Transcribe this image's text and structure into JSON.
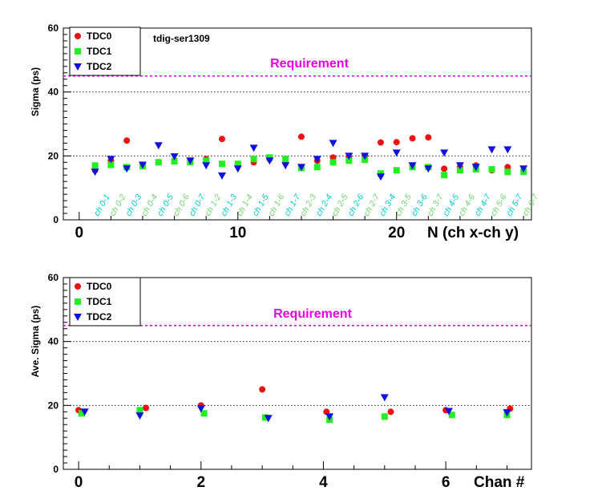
{
  "chart_data": [
    {
      "type": "scatter",
      "annotation": "tdig-ser1309",
      "ylabel": "Sigma (ps)",
      "xlabel": "N (ch x-ch y)",
      "ylim": [
        0,
        60
      ],
      "xlim": [
        -1,
        28.5
      ],
      "y_ticks": [
        0,
        20,
        40,
        60
      ],
      "x_ticks": [
        0,
        10,
        20
      ],
      "grid": true,
      "legend_position": "top-left",
      "requirement": {
        "label": "Requirement",
        "value": 45,
        "color": "#e600e6"
      },
      "category_labels": [
        "ch 0-1",
        "ch 0-2",
        "ch 0-3",
        "ch 0-4",
        "ch 0-5",
        "ch 0-6",
        "ch 0-7",
        "ch 1-2",
        "ch 1-3",
        "ch 1-4",
        "ch 1-5",
        "ch 1-6",
        "ch 1-7",
        "ch 2-3",
        "ch 2-4",
        "ch 2-5",
        "ch 2-6",
        "ch 2-7",
        "ch 3-4",
        "ch 3-5",
        "ch 3-6",
        "ch 3-7",
        "ch 4-5",
        "ch 4-6",
        "ch 4-7",
        "ch 5-6",
        "ch 5-7",
        "ch 6-7"
      ],
      "category_label_colors": [
        "#00c8c8",
        "#6fd36f"
      ],
      "series": [
        {
          "name": "TDC0",
          "marker": "circle",
          "color": "#ee1111",
          "x": [
            1,
            2,
            3,
            4,
            5,
            6,
            7,
            8,
            9,
            10,
            11,
            12,
            13,
            14,
            15,
            16,
            17,
            18,
            19,
            20,
            21,
            22,
            23,
            24,
            25,
            26,
            27,
            28
          ],
          "values": [
            15.5,
            18.5,
            24.8,
            17.0,
            18.0,
            18.5,
            18.0,
            19.0,
            25.3,
            17.5,
            18.0,
            19.0,
            18.0,
            26.0,
            18.5,
            19.5,
            19.5,
            20.0,
            24.2,
            24.3,
            25.5,
            25.8,
            16.0,
            16.5,
            17.0,
            15.5,
            16.5,
            15.5
          ]
        },
        {
          "name": "TDC1",
          "marker": "square",
          "color": "#22ee22",
          "x": [
            1,
            2,
            3,
            4,
            5,
            6,
            7,
            8,
            9,
            10,
            11,
            12,
            13,
            14,
            15,
            16,
            17,
            18,
            19,
            20,
            21,
            22,
            23,
            24,
            25,
            26,
            27,
            28
          ],
          "values": [
            17.0,
            17.2,
            16.5,
            16.8,
            18.0,
            18.3,
            18.0,
            18.5,
            17.5,
            17.5,
            19.0,
            19.5,
            19.0,
            16.2,
            16.5,
            18.0,
            18.5,
            18.8,
            14.5,
            15.5,
            16.5,
            16.5,
            14.0,
            15.5,
            15.8,
            15.8,
            15.0,
            15.0
          ]
        },
        {
          "name": "TDC2",
          "marker": "triangle-down",
          "color": "#1111dd",
          "x": [
            1,
            2,
            3,
            4,
            5,
            6,
            7,
            8,
            9,
            10,
            11,
            12,
            13,
            14,
            15,
            16,
            17,
            18,
            19,
            20,
            21,
            22,
            23,
            24,
            25,
            26,
            27,
            28
          ],
          "values": [
            15.0,
            19.0,
            16.0,
            17.2,
            23.3,
            19.8,
            18.5,
            17.0,
            13.8,
            16.0,
            22.5,
            18.5,
            17.0,
            16.5,
            19.0,
            24.0,
            20.0,
            20.0,
            13.5,
            21.0,
            17.0,
            16.0,
            21.0,
            17.0,
            16.5,
            22.0,
            22.0,
            16.0
          ]
        }
      ]
    },
    {
      "type": "scatter",
      "ylabel": "Ave. Sigma (ps)",
      "xlabel": "Chan #",
      "ylim": [
        0,
        60
      ],
      "xlim": [
        -0.25,
        7.4
      ],
      "y_ticks": [
        0,
        20,
        40,
        60
      ],
      "x_ticks": [
        0,
        2,
        4,
        6
      ],
      "grid": true,
      "legend_position": "top-left",
      "requirement": {
        "label": "Requirement",
        "value": 45,
        "color": "#e600e6"
      },
      "series": [
        {
          "name": "TDC0",
          "marker": "circle",
          "color": "#ee1111",
          "x": [
            0.0,
            1.1,
            2.0,
            3.0,
            4.05,
            5.1,
            6.0,
            7.05
          ],
          "values": [
            18.5,
            19.2,
            20.0,
            25.0,
            18.0,
            18.0,
            18.5,
            19.0
          ]
        },
        {
          "name": "TDC1",
          "marker": "square",
          "color": "#22ee22",
          "x": [
            0.05,
            1.0,
            2.05,
            3.05,
            4.1,
            5.0,
            6.1,
            7.0
          ],
          "values": [
            17.5,
            18.5,
            17.5,
            16.2,
            15.5,
            16.5,
            17.0,
            17.0
          ]
        },
        {
          "name": "TDC2",
          "marker": "triangle-down",
          "color": "#1111dd",
          "x": [
            0.1,
            1.0,
            2.0,
            3.1,
            4.1,
            5.0,
            6.05,
            7.0
          ],
          "values": [
            18.0,
            16.8,
            19.0,
            16.0,
            16.5,
            22.5,
            18.2,
            17.8
          ]
        }
      ]
    }
  ]
}
